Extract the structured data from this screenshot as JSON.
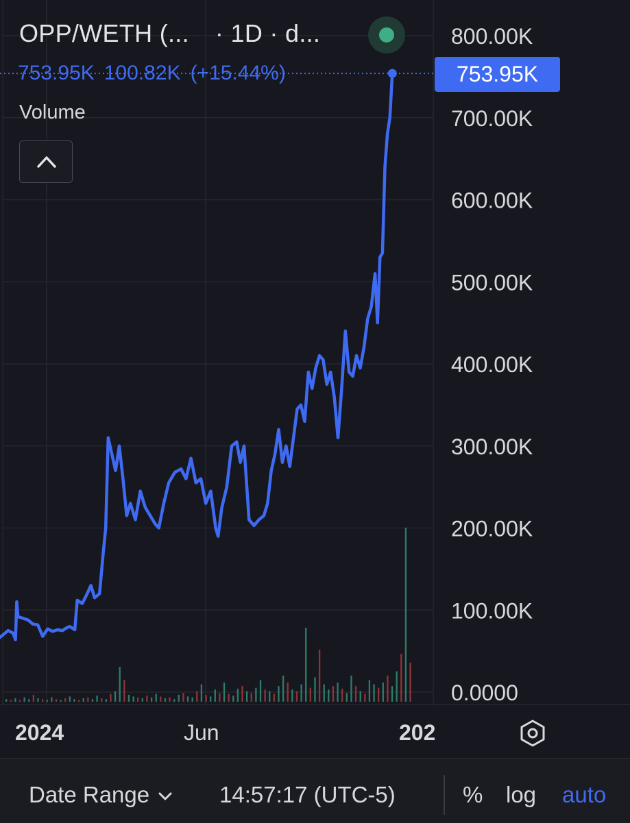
{
  "header": {
    "symbol": "OPP/WETH (...",
    "interval": "· 1D · d...",
    "status_color": "#3fae86"
  },
  "legend": {
    "last_value": "753.95K",
    "change": "100.82K",
    "change_pct": "(+15.44%)",
    "color": "#3f6bf2"
  },
  "volume_pane": {
    "label": "Volume",
    "toggle_icon": "chevron-up-icon"
  },
  "price_tag": "753.95K",
  "time_axis": {
    "labels": [
      "2024",
      "Jun",
      "202"
    ],
    "settings_icon": "hexagon-settings-icon"
  },
  "bottom_bar": {
    "date_range_label": "Date Range",
    "dropdown_icon": "chevron-down-icon",
    "clock": "14:57:17 (UTC-5)",
    "percent_label": "%",
    "log_label": "log",
    "auto_label": "auto"
  },
  "colors": {
    "line": "#3f6bf2",
    "background": "#17171f",
    "volume_up": "#2f8f78",
    "volume_down": "#a53a3a"
  },
  "chart_data": {
    "type": "line",
    "title": "",
    "xlabel": "",
    "ylabel": "",
    "y_tick_labels": [
      "800.00K",
      "700.00K",
      "600.00K",
      "500.00K",
      "400.00K",
      "300.00K",
      "200.00K",
      "100.00K",
      "0.0000"
    ],
    "y_ticks": [
      800000,
      700000,
      600000,
      500000,
      400000,
      300000,
      200000,
      100000,
      0
    ],
    "ylim": [
      -10000,
      850000
    ],
    "xlim": [
      "2024-01-01",
      "2024-12-30"
    ],
    "x_tick_labels": [
      "2024",
      "Jun",
      "202"
    ],
    "grid": true,
    "last_value": 753950,
    "series": [
      {
        "points": [
          [
            "2024-01-01",
            66000
          ],
          [
            "2024-01-04",
            65000
          ],
          [
            "2024-01-08",
            70000
          ],
          [
            "2024-01-12",
            75000
          ],
          [
            "2024-01-16",
            72000
          ],
          [
            "2024-01-18",
            64000
          ],
          [
            "2024-01-19",
            110000
          ],
          [
            "2024-01-20",
            92000
          ],
          [
            "2024-01-24",
            90000
          ],
          [
            "2024-01-28",
            88000
          ],
          [
            "2024-02-01",
            83000
          ],
          [
            "2024-02-05",
            82000
          ],
          [
            "2024-02-09",
            68000
          ],
          [
            "2024-02-13",
            77000
          ],
          [
            "2024-02-17",
            74000
          ],
          [
            "2024-02-21",
            76000
          ],
          [
            "2024-02-25",
            75000
          ],
          [
            "2024-02-28",
            78000
          ],
          [
            "2024-03-02",
            80000
          ],
          [
            "2024-03-06",
            76000
          ],
          [
            "2024-03-08",
            112000
          ],
          [
            "2024-03-12",
            108000
          ],
          [
            "2024-03-16",
            120000
          ],
          [
            "2024-03-19",
            130000
          ],
          [
            "2024-03-22",
            115000
          ],
          [
            "2024-03-26",
            120000
          ],
          [
            "2024-03-29",
            170000
          ],
          [
            "2024-03-31",
            200000
          ],
          [
            "2024-04-02",
            310000
          ],
          [
            "2024-04-05",
            290000
          ],
          [
            "2024-04-08",
            270000
          ],
          [
            "2024-04-11",
            300000
          ],
          [
            "2024-04-14",
            260000
          ],
          [
            "2024-04-17",
            215000
          ],
          [
            "2024-04-20",
            230000
          ],
          [
            "2024-04-24",
            210000
          ],
          [
            "2024-04-28",
            245000
          ],
          [
            "2024-05-02",
            225000
          ],
          [
            "2024-05-06",
            215000
          ],
          [
            "2024-05-10",
            205000
          ],
          [
            "2024-05-13",
            200000
          ],
          [
            "2024-05-17",
            230000
          ],
          [
            "2024-05-21",
            255000
          ],
          [
            "2024-05-26",
            268000
          ],
          [
            "2024-05-31",
            272000
          ],
          [
            "2024-06-04",
            260000
          ],
          [
            "2024-06-08",
            285000
          ],
          [
            "2024-06-12",
            255000
          ],
          [
            "2024-06-16",
            260000
          ],
          [
            "2024-06-20",
            230000
          ],
          [
            "2024-06-24",
            245000
          ],
          [
            "2024-06-28",
            200000
          ],
          [
            "2024-06-30",
            190000
          ],
          [
            "2024-07-03",
            225000
          ],
          [
            "2024-07-07",
            250000
          ],
          [
            "2024-07-11",
            300000
          ],
          [
            "2024-07-15",
            305000
          ],
          [
            "2024-07-18",
            280000
          ],
          [
            "2024-07-21",
            300000
          ],
          [
            "2024-07-25",
            210000
          ],
          [
            "2024-07-29",
            203000
          ],
          [
            "2024-08-02",
            210000
          ],
          [
            "2024-08-06",
            215000
          ],
          [
            "2024-08-09",
            230000
          ],
          [
            "2024-08-12",
            270000
          ],
          [
            "2024-08-15",
            290000
          ],
          [
            "2024-08-18",
            320000
          ],
          [
            "2024-08-21",
            280000
          ],
          [
            "2024-08-24",
            300000
          ],
          [
            "2024-08-27",
            275000
          ],
          [
            "2024-08-30",
            310000
          ],
          [
            "2024-09-02",
            345000
          ],
          [
            "2024-09-05",
            350000
          ],
          [
            "2024-09-08",
            330000
          ],
          [
            "2024-09-11",
            390000
          ],
          [
            "2024-09-14",
            370000
          ],
          [
            "2024-09-17",
            395000
          ],
          [
            "2024-09-20",
            410000
          ],
          [
            "2024-09-23",
            405000
          ],
          [
            "2024-09-26",
            375000
          ],
          [
            "2024-09-29",
            390000
          ],
          [
            "2024-10-02",
            360000
          ],
          [
            "2024-10-05",
            310000
          ],
          [
            "2024-10-08",
            370000
          ],
          [
            "2024-10-11",
            440000
          ],
          [
            "2024-10-14",
            390000
          ],
          [
            "2024-10-17",
            385000
          ],
          [
            "2024-10-20",
            410000
          ],
          [
            "2024-10-23",
            395000
          ],
          [
            "2024-10-26",
            420000
          ],
          [
            "2024-10-29",
            455000
          ],
          [
            "2024-11-01",
            470000
          ],
          [
            "2024-11-04",
            510000
          ],
          [
            "2024-11-06",
            450000
          ],
          [
            "2024-11-08",
            530000
          ],
          [
            "2024-11-10",
            535000
          ],
          [
            "2024-11-12",
            640000
          ],
          [
            "2024-11-14",
            680000
          ],
          [
            "2024-11-16",
            700000
          ],
          [
            "2024-11-18",
            753950
          ]
        ]
      }
    ],
    "volume": {
      "values": [
        3,
        2,
        4,
        2,
        5,
        3,
        8,
        4,
        3,
        2,
        5,
        3,
        2,
        4,
        6,
        3,
        2,
        4,
        5,
        3,
        7,
        4,
        3,
        9,
        12,
        40,
        25,
        8,
        6,
        5,
        4,
        7,
        5,
        9,
        6,
        4,
        5,
        3,
        8,
        10,
        6,
        5,
        12,
        20,
        8,
        6,
        14,
        10,
        22,
        9,
        7,
        15,
        18,
        12,
        10,
        16,
        25,
        14,
        12,
        9,
        18,
        30,
        22,
        14,
        12,
        20,
        85,
        16,
        28,
        60,
        20,
        14,
        18,
        22,
        15,
        10,
        30,
        18,
        12,
        9,
        25,
        20,
        16,
        22,
        30,
        18,
        35,
        55,
        200,
        45
      ],
      "up_down": [
        "u",
        "d",
        "u",
        "d",
        "u",
        "u",
        "d",
        "u",
        "d",
        "u",
        "u",
        "d",
        "u",
        "d",
        "u",
        "u",
        "d",
        "u",
        "d",
        "u",
        "u",
        "d",
        "u",
        "d",
        "u",
        "u",
        "d",
        "u",
        "u",
        "d",
        "u",
        "d",
        "u",
        "u",
        "d",
        "u",
        "d",
        "u",
        "u",
        "d",
        "u",
        "u",
        "d",
        "u",
        "d",
        "u",
        "u",
        "d",
        "u",
        "d",
        "u",
        "u",
        "d",
        "u",
        "d",
        "u",
        "u",
        "d",
        "u",
        "d",
        "u",
        "u",
        "d",
        "u",
        "d",
        "u",
        "u",
        "d",
        "u",
        "d",
        "u",
        "u",
        "d",
        "u",
        "d",
        "u",
        "u",
        "d",
        "u",
        "d",
        "u",
        "u",
        "d",
        "u",
        "d",
        "u",
        "u",
        "d",
        "u",
        "d"
      ],
      "max": 200
    }
  }
}
